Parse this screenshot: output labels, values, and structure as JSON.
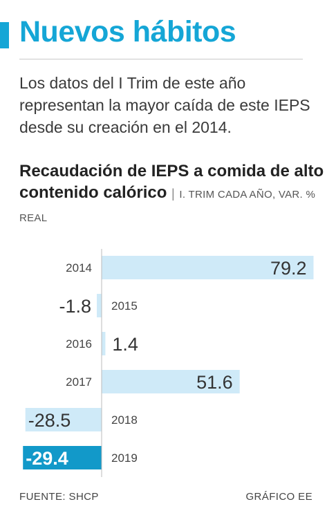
{
  "header": {
    "title": "Nuevos hábitos",
    "subtitle": "Los datos del I Trim de este año representan la mayor caída de este IEPS desde su creación en el 2014.",
    "accent_color": "#15a6d6"
  },
  "chart_data": {
    "type": "bar",
    "orientation": "horizontal",
    "title": "Recaudación de IEPS a comida de alto contenido calórico",
    "separator": "|",
    "unit_note": "I. TRIM CADA AÑO, VAR. % REAL",
    "categories": [
      "2014",
      "2015",
      "2016",
      "2017",
      "2018",
      "2019"
    ],
    "values": [
      79.2,
      -1.8,
      1.4,
      51.6,
      -28.5,
      -29.4
    ],
    "value_labels": [
      "79.2",
      "-1.8",
      "1.4",
      "51.6",
      "-28.5",
      "-29.4"
    ],
    "highlight_category": "2019",
    "bar_color": "#cfeaf8",
    "highlight_color": "#1299c9",
    "xlim": [
      -30,
      80
    ]
  },
  "footer": {
    "source": "FUENTE: SHCP",
    "credit": "GRÁFICO EE"
  }
}
